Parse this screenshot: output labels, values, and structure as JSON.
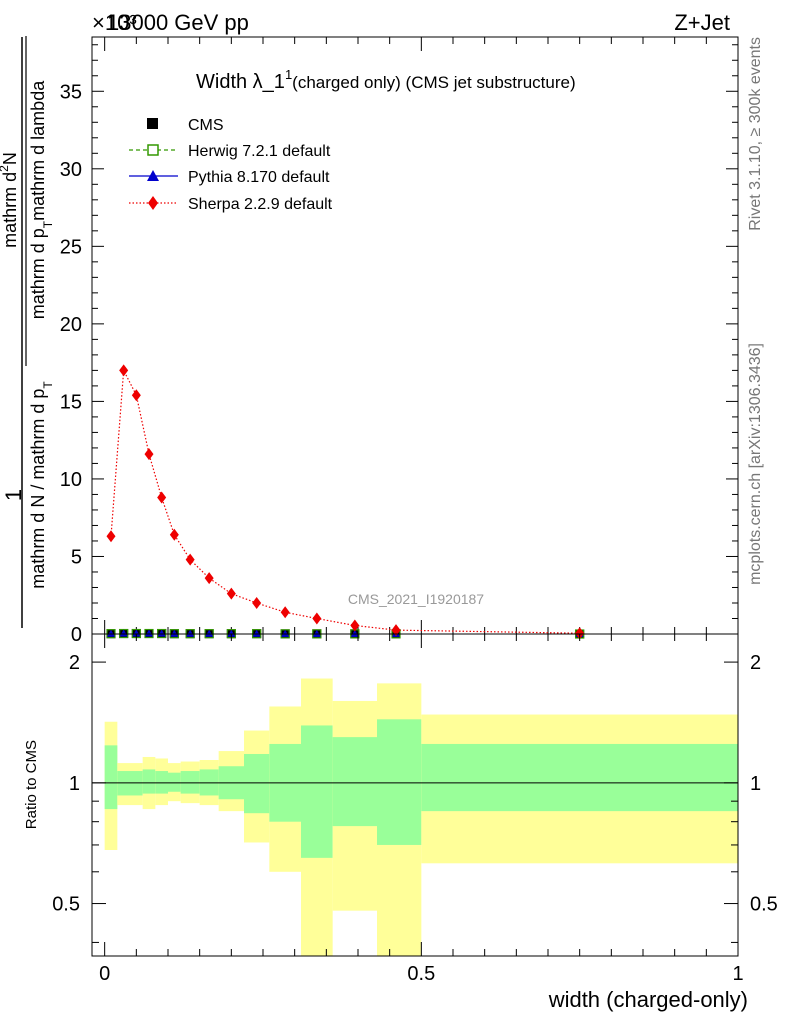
{
  "header": {
    "energy_label": "13000 GeV pp",
    "process_label": "Z+Jet",
    "exponent_label": "×10³"
  },
  "side_labels": {
    "rivet": "Rivet 3.1.10, ≥ 300k events",
    "mcplots": "mcplots.cern.ch [arXiv:1306.3436]"
  },
  "watermark": "CMS_2021_I1920187",
  "colors": {
    "herwig": "#339900",
    "pythia": "#0000cc",
    "sherpa": "#ee0000",
    "band_inner": "#99ff99",
    "band_outer": "#ffff99"
  },
  "chart_data": [
    {
      "type": "line",
      "title_main": "Width λ_1",
      "title_sup": "1",
      "title_rest": "(charged only) (CMS jet substructure)",
      "ylabel_numerator": "1",
      "ylabel_parts": [
        "mathrm d N / mathrm d p",
        "T",
        "mathrm d p",
        "T",
        "mathrm d lambda",
        "mathrm d",
        "2",
        "N"
      ],
      "ylabel_prefix": "mathrm d",
      "ylabel_exp": "2",
      "ylabel_num_rest": "N",
      "ylabel_den_1": "mathrm d N / mathrm d p",
      "ylabel_den_2": "mathrm d p",
      "ylabel_den_sub": "T",
      "ylabel_den_3": "mathrm d lambda",
      "xlim": [
        -0.02,
        1.0
      ],
      "ylim": [
        0,
        38.5
      ],
      "y_scale_note": "values ×10³",
      "yticks": [
        0,
        5,
        10,
        15,
        20,
        25,
        30,
        35
      ],
      "legend": [
        {
          "name": "CMS",
          "marker": "square-filled"
        },
        {
          "name": "Herwig 7.2.1 default",
          "marker": "square-open"
        },
        {
          "name": "Pythia 8.170 default",
          "marker": "triangle"
        },
        {
          "name": "Sherpa 2.2.9 default",
          "marker": "diamond"
        }
      ],
      "series": [
        {
          "name": "Sherpa 2.2.9 default",
          "x": [
            0.01,
            0.03,
            0.05,
            0.07,
            0.09,
            0.11,
            0.135,
            0.165,
            0.2,
            0.24,
            0.285,
            0.335,
            0.395,
            0.46,
            0.75
          ],
          "y": [
            6.3,
            17.0,
            15.4,
            11.6,
            8.8,
            6.4,
            4.8,
            3.6,
            2.6,
            2.0,
            1.4,
            1.0,
            0.55,
            0.25,
            0.05
          ]
        },
        {
          "name": "CMS",
          "x": [
            0.01,
            0.03,
            0.05,
            0.07,
            0.09,
            0.11,
            0.135,
            0.165,
            0.2,
            0.24,
            0.285,
            0.335,
            0.395,
            0.46,
            0.75
          ],
          "y": [
            0.02,
            0.03,
            0.03,
            0.03,
            0.03,
            0.02,
            0.02,
            0.02,
            0.02,
            0.02,
            0.01,
            0.01,
            0.01,
            0.01,
            0.0
          ]
        }
      ]
    },
    {
      "type": "area",
      "ylabel": "Ratio to CMS",
      "xlabel": "width (charged-only)",
      "xlim": [
        -0.02,
        1.0
      ],
      "ylim": [
        0.37,
        2.35
      ],
      "yscale": "log",
      "yticks": [
        0.5,
        1,
        2
      ],
      "xticks": [
        0,
        0.5,
        1
      ],
      "bins": [
        {
          "lo": 0.0,
          "hi": 0.02,
          "inner_lo": 0.86,
          "inner_hi": 1.24,
          "outer_lo": 0.68,
          "outer_hi": 1.42
        },
        {
          "lo": 0.02,
          "hi": 0.04,
          "inner_lo": 0.93,
          "inner_hi": 1.07,
          "outer_lo": 0.88,
          "outer_hi": 1.12
        },
        {
          "lo": 0.04,
          "hi": 0.06,
          "inner_lo": 0.93,
          "inner_hi": 1.07,
          "outer_lo": 0.88,
          "outer_hi": 1.12
        },
        {
          "lo": 0.06,
          "hi": 0.08,
          "inner_lo": 0.94,
          "inner_hi": 1.08,
          "outer_lo": 0.86,
          "outer_hi": 1.16
        },
        {
          "lo": 0.08,
          "hi": 0.1,
          "inner_lo": 0.94,
          "inner_hi": 1.07,
          "outer_lo": 0.88,
          "outer_hi": 1.15
        },
        {
          "lo": 0.1,
          "hi": 0.12,
          "inner_lo": 0.95,
          "inner_hi": 1.06,
          "outer_lo": 0.9,
          "outer_hi": 1.12
        },
        {
          "lo": 0.12,
          "hi": 0.15,
          "inner_lo": 0.94,
          "inner_hi": 1.07,
          "outer_lo": 0.89,
          "outer_hi": 1.13
        },
        {
          "lo": 0.15,
          "hi": 0.18,
          "inner_lo": 0.93,
          "inner_hi": 1.08,
          "outer_lo": 0.88,
          "outer_hi": 1.14
        },
        {
          "lo": 0.18,
          "hi": 0.22,
          "inner_lo": 0.91,
          "inner_hi": 1.1,
          "outer_lo": 0.85,
          "outer_hi": 1.2
        },
        {
          "lo": 0.22,
          "hi": 0.26,
          "inner_lo": 0.84,
          "inner_hi": 1.18,
          "outer_lo": 0.71,
          "outer_hi": 1.35
        },
        {
          "lo": 0.26,
          "hi": 0.31,
          "inner_lo": 0.8,
          "inner_hi": 1.25,
          "outer_lo": 0.6,
          "outer_hi": 1.55
        },
        {
          "lo": 0.31,
          "hi": 0.36,
          "inner_lo": 0.65,
          "inner_hi": 1.39,
          "outer_lo": 0.37,
          "outer_hi": 1.82
        },
        {
          "lo": 0.36,
          "hi": 0.43,
          "inner_lo": 0.78,
          "inner_hi": 1.3,
          "outer_lo": 0.48,
          "outer_hi": 1.6
        },
        {
          "lo": 0.43,
          "hi": 0.5,
          "inner_lo": 0.7,
          "inner_hi": 1.44,
          "outer_lo": 0.37,
          "outer_hi": 1.77
        },
        {
          "lo": 0.5,
          "hi": 1.0,
          "inner_lo": 0.85,
          "inner_hi": 1.25,
          "outer_lo": 0.63,
          "outer_hi": 1.48
        }
      ]
    }
  ]
}
